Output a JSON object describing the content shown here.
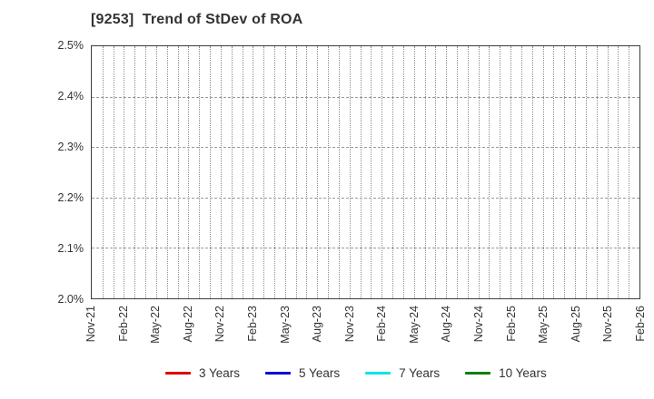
{
  "chart_data": {
    "type": "line",
    "title": "[9253]  Trend of StDev of ROA",
    "x_tick_labels": [
      "Nov-21",
      "Feb-22",
      "May-22",
      "Aug-22",
      "Nov-22",
      "Feb-23",
      "May-23",
      "Aug-23",
      "Nov-23",
      "Feb-24",
      "May-24",
      "Aug-24",
      "Nov-24",
      "Feb-25",
      "May-25",
      "Aug-25",
      "Nov-25",
      "Feb-26"
    ],
    "y_tick_labels": [
      "2.0%",
      "2.1%",
      "2.2%",
      "2.3%",
      "2.4%",
      "2.5%"
    ],
    "ylim": [
      2.0,
      2.5
    ],
    "y_unit": "%",
    "months_span": 51,
    "x_tick_step_months": 3,
    "grid": true,
    "x_minor_gridlines": "monthly",
    "legend_position": "bottom",
    "series": [
      {
        "name": "3 Years",
        "color": "#dd0000",
        "values": []
      },
      {
        "name": "5 Years",
        "color": "#0000dd",
        "values": []
      },
      {
        "name": "7 Years",
        "color": "#00e5e5",
        "values": []
      },
      {
        "name": "10 Years",
        "color": "#008000",
        "values": []
      }
    ],
    "note": "plot area is empty - no data points are drawn for any series"
  }
}
